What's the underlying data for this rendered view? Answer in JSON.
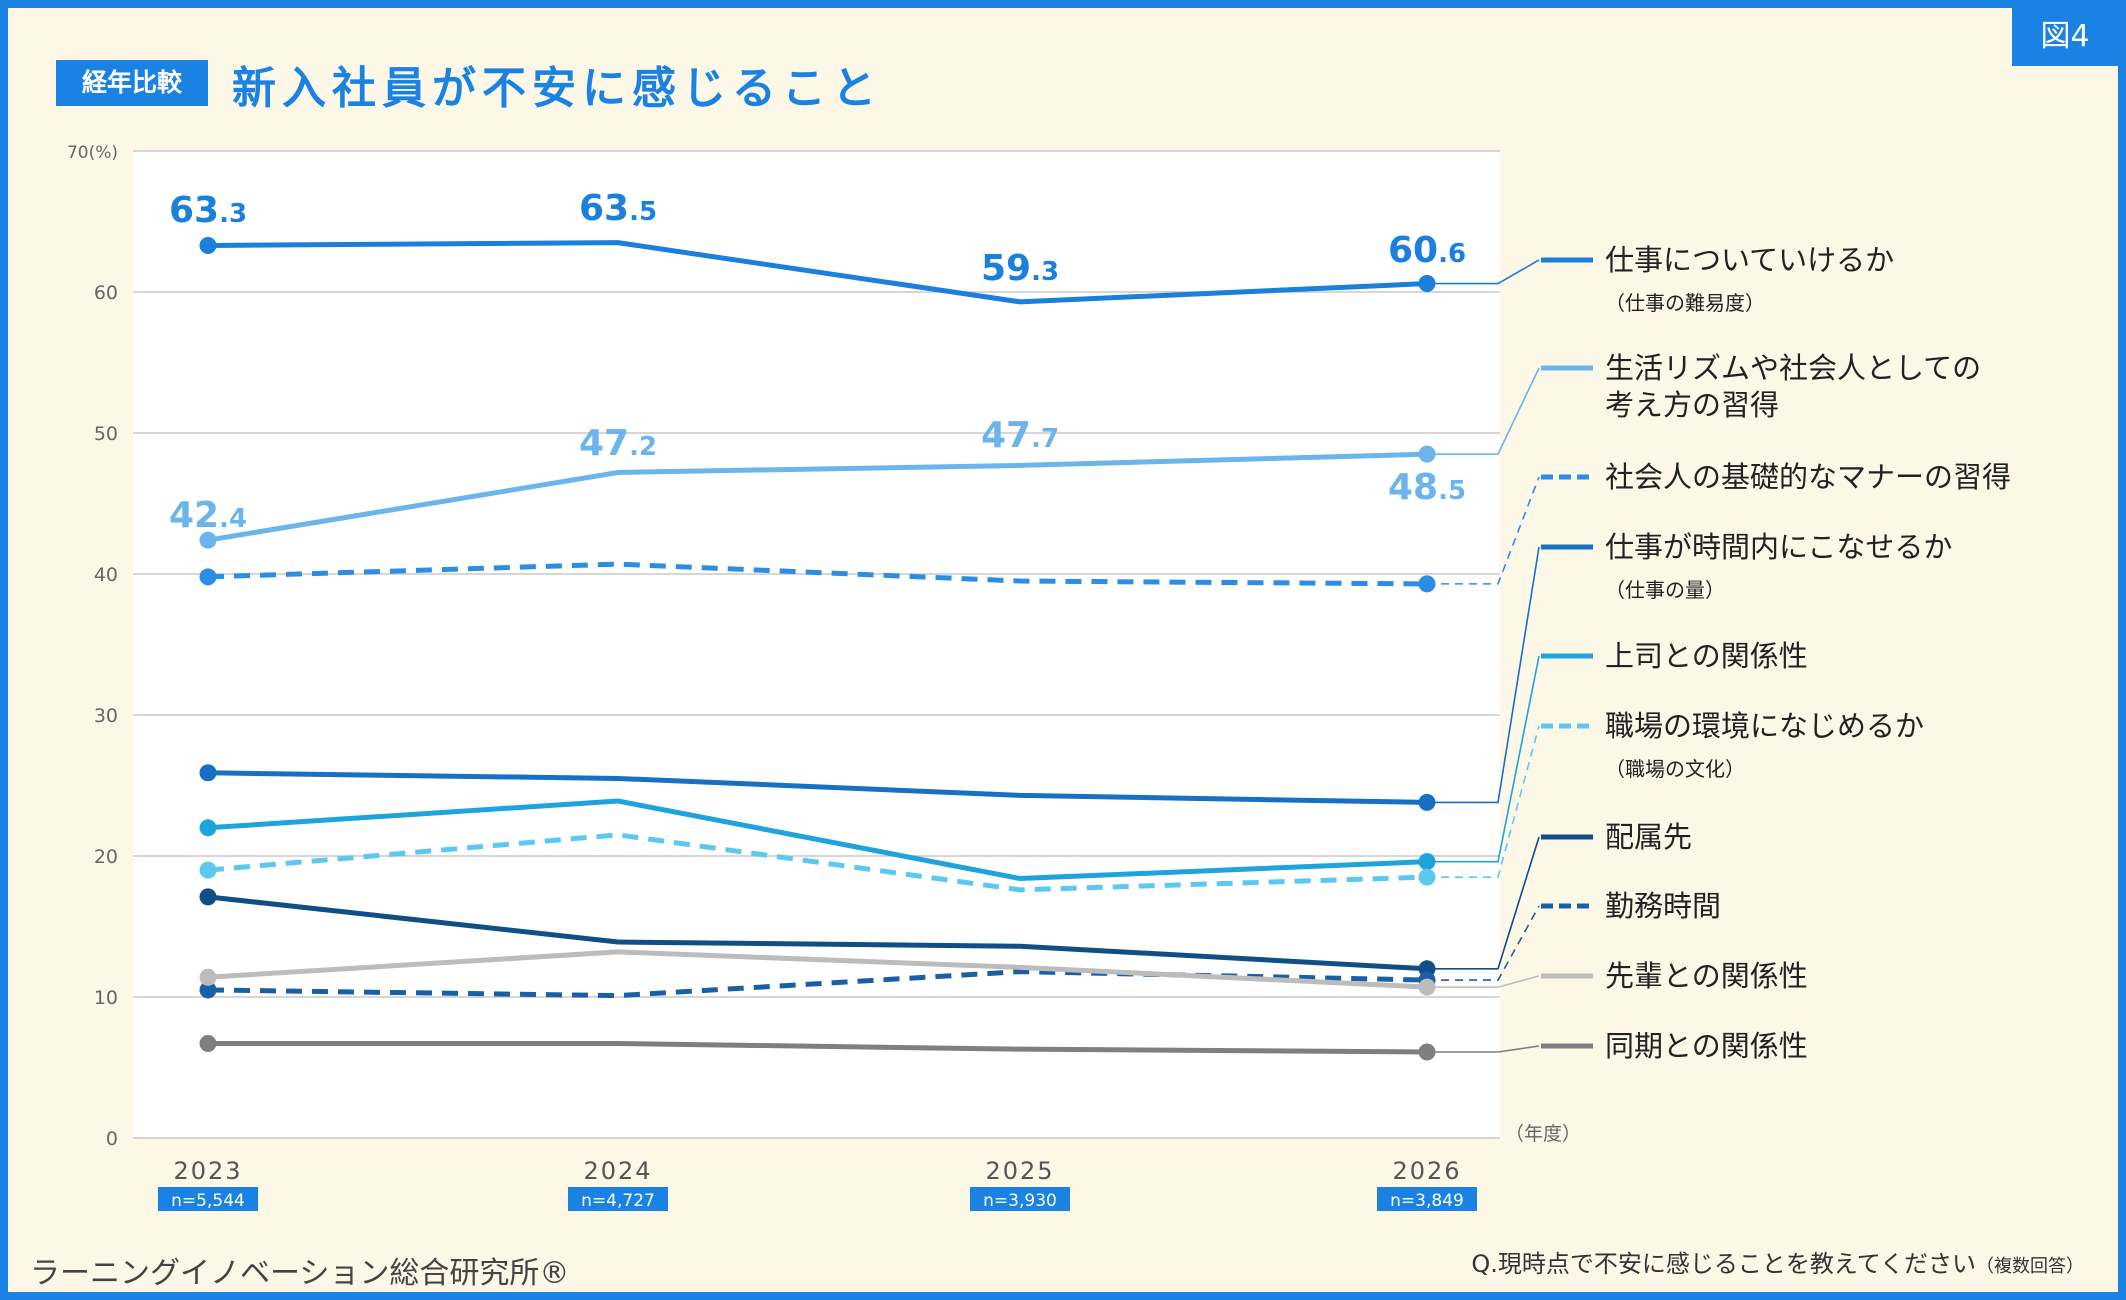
{
  "figure_label": "図4",
  "title_badge": "経年比較",
  "title": "新入社員が不安に感じること",
  "publisher": "ラーニングイノベーション総合研究所®",
  "question": "Q.現時点で不安に感じることを教えてください",
  "question_note": "（複数回答）",
  "colors": {
    "accent": "#1a82e2",
    "background": "#fdf7e8",
    "frame": "#1a82e2"
  },
  "chart_data": {
    "type": "line",
    "title": "新入社員が不安に感じること",
    "y_top_label": "70(%)",
    "x_unit_label": "（年度）",
    "ylim": [
      0,
      70
    ],
    "y_ticks": [
      0,
      10,
      20,
      30,
      40,
      50,
      60
    ],
    "grid": true,
    "legend_position": "right",
    "x": [
      "2023",
      "2024",
      "2025",
      "2026"
    ],
    "sample_sizes": [
      "n=5,544",
      "n=4,727",
      "n=3,930",
      "n=3,849"
    ],
    "series": [
      {
        "name": "仕事についていけるか",
        "sub": "（仕事の難易度）",
        "values": [
          63.3,
          63.5,
          59.3,
          60.6
        ],
        "labels": [
          "63.3",
          "63.5",
          "59.3",
          "60.6"
        ],
        "color": "#1a7fdd",
        "dashed": false
      },
      {
        "name": "生活リズムや社会人としての",
        "name2": "考え方の習得",
        "values": [
          42.4,
          47.2,
          47.7,
          48.5
        ],
        "labels": [
          "42.4",
          "47.2",
          "47.7",
          "48.5"
        ],
        "color": "#6cb4ec",
        "dashed": false
      },
      {
        "name": "社会人の基礎的なマナーの習得",
        "values": [
          39.8,
          40.7,
          39.5,
          39.3
        ],
        "color": "#2b8de6",
        "dashed": true
      },
      {
        "name": "仕事が時間内にこなせるか",
        "sub": "（仕事の量）",
        "values": [
          25.9,
          25.5,
          24.3,
          23.8
        ],
        "color": "#1670c4",
        "dashed": false
      },
      {
        "name": "上司との関係性",
        "values": [
          22.0,
          23.9,
          18.4,
          19.6
        ],
        "color": "#1ea3dc",
        "dashed": false
      },
      {
        "name": "職場の環境になじめるか",
        "sub": "（職場の文化）",
        "values": [
          19.0,
          21.5,
          17.6,
          18.5
        ],
        "color": "#5cc8f0",
        "dashed": true
      },
      {
        "name": "配属先",
        "values": [
          17.1,
          13.9,
          13.6,
          12.0
        ],
        "color": "#0f4f86",
        "dashed": false
      },
      {
        "name": "勤務時間",
        "values": [
          10.5,
          10.1,
          11.8,
          11.2
        ],
        "color": "#1a5fa6",
        "dashed": true
      },
      {
        "name": "先輩との関係性",
        "values": [
          11.4,
          13.2,
          12.1,
          10.7
        ],
        "color": "#bcbcbc",
        "dashed": false
      },
      {
        "name": "同期との関係性",
        "values": [
          6.7,
          6.7,
          6.3,
          6.1
        ],
        "color": "#7f7f7f",
        "dashed": false
      }
    ]
  }
}
